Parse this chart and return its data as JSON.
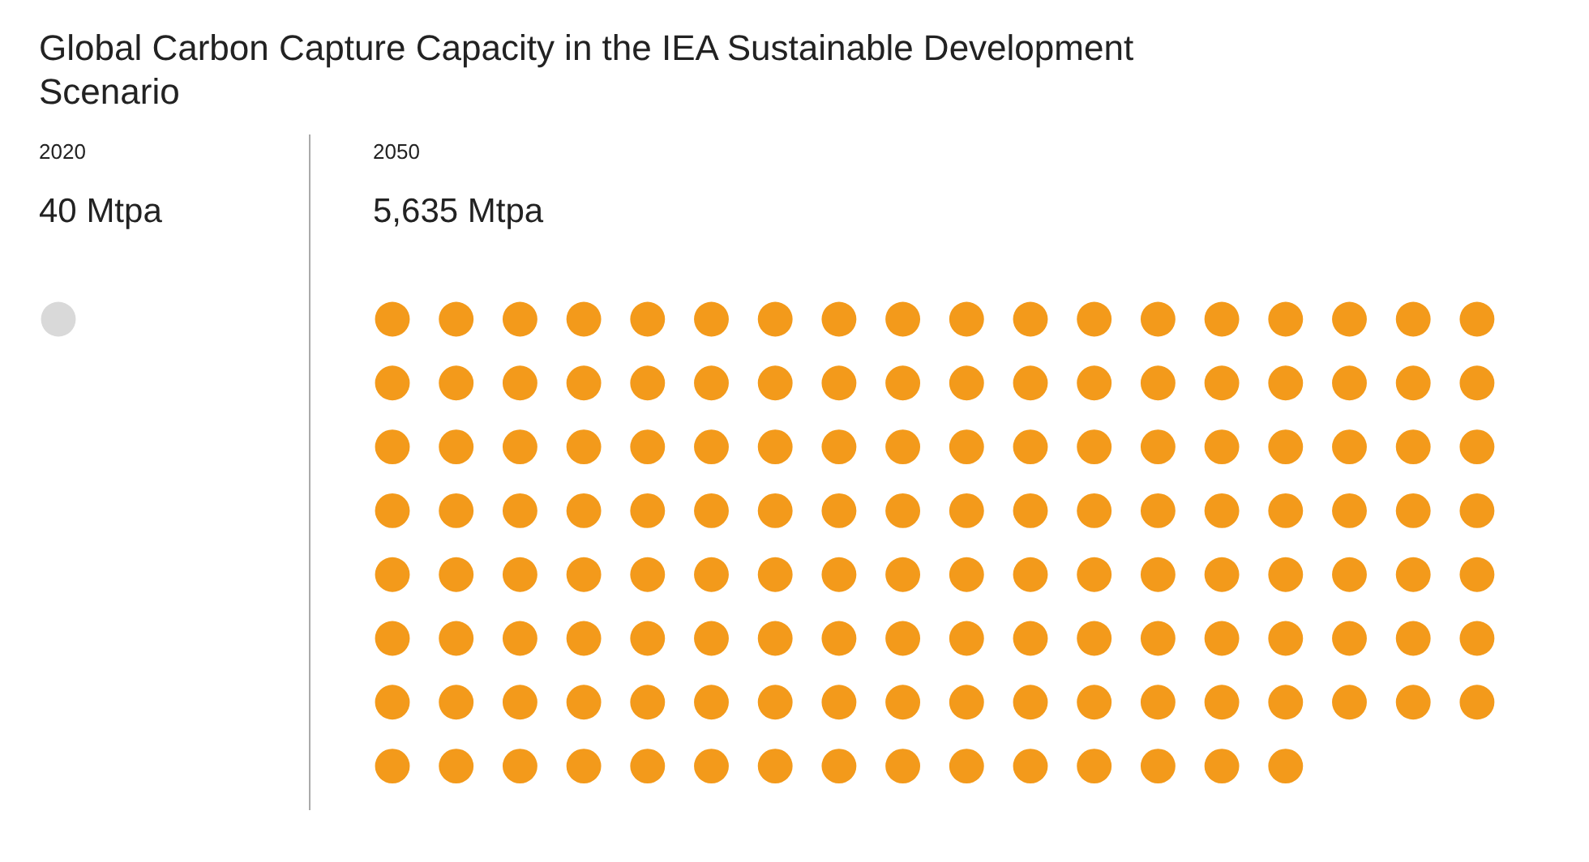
{
  "chart_data": {
    "type": "other",
    "title": "Global Carbon Capture Capacity in the IEA Sustainable Development Scenario",
    "categories": [
      "2020",
      "2050"
    ],
    "values": [
      40,
      5635
    ],
    "value_labels": [
      "40 Mtpa",
      "5,635 Mtpa"
    ],
    "colors": [
      "#d9d9d9",
      "#f39a1b"
    ]
  }
}
